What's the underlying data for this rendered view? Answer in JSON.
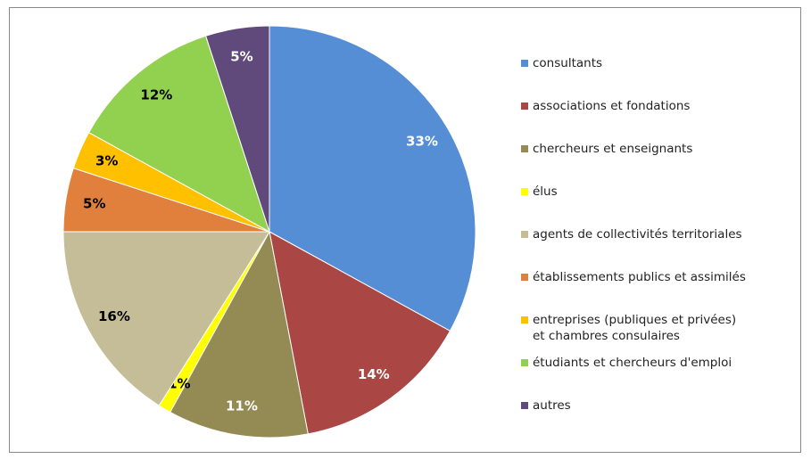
{
  "chart_data": {
    "type": "pie",
    "categories": [
      "consultants",
      "associations et fondations",
      "chercheurs et enseignants",
      "élus",
      "agents de collectivités territoriales",
      "établissements publics et assimilés",
      "entreprises (publiques et privées) et chambres consulaires",
      "étudiants et chercheurs d'emploi",
      "autres"
    ],
    "values": [
      33,
      14,
      11,
      1,
      16,
      5,
      3,
      12,
      5
    ],
    "value_labels": [
      "33%",
      "14%",
      "11%",
      "1%",
      "16%",
      "5%",
      "3%",
      "12%",
      "5%"
    ],
    "colors": [
      "#558ED5",
      "#AA4643",
      "#948A54",
      "#FFFF00",
      "#C4BD97",
      "#E0803C",
      "#FFC000",
      "#92D050",
      "#604A7B"
    ]
  }
}
